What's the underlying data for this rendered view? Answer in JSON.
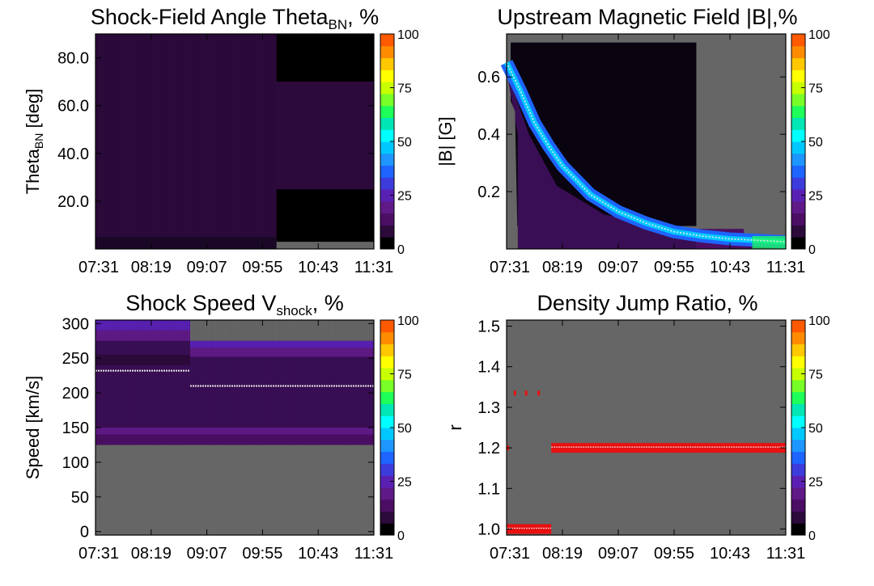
{
  "colorbar": {
    "min": 0,
    "max": 100,
    "ticks": [
      "0",
      "25",
      "50",
      "75",
      "100"
    ],
    "colors": [
      "#000000",
      "#2d0a3c",
      "#4b0e64",
      "#601a87",
      "#5a20b4",
      "#3c3cdc",
      "#1e64ff",
      "#1e96ff",
      "#00c8ff",
      "#00ffff",
      "#00e6b4",
      "#1eff5a",
      "#78ff28",
      "#c8ff00",
      "#ffff00",
      "#ffc800",
      "#ff8c00",
      "#ff5a00"
    ]
  },
  "time_ticks": [
    "07:31",
    "08:19",
    "09:07",
    "09:55",
    "10:43",
    "11:31"
  ],
  "chart_data": [
    {
      "type": "heatmap",
      "title_main": "Shock-Field Angle Theta",
      "title_sub": "BN",
      "title_tail": ", %",
      "ylabel_main": "Theta",
      "ylabel_sub": "BN",
      "ylabel_tail": " [deg]",
      "x_ticks": [
        "07:31",
        "08:19",
        "09:07",
        "09:55",
        "10:43",
        "11:31"
      ],
      "yticks": [
        "20.0",
        "40.0",
        "60.0",
        "80.0"
      ],
      "ytick_values": [
        20,
        40,
        60,
        80
      ],
      "ylim": [
        0,
        90
      ],
      "cb_ticks": [
        "0",
        "25",
        "50",
        "75",
        "100"
      ],
      "cb_range": [
        0,
        100
      ],
      "background": "#5c1a7a",
      "description_free": true,
      "regions": [
        {
          "x": [
            0,
            0.65
          ],
          "y": [
            0,
            90
          ],
          "value": 8
        },
        {
          "x": [
            0.65,
            1
          ],
          "y": [
            70,
            90
          ],
          "value": 3
        },
        {
          "x": [
            0.65,
            1
          ],
          "y": [
            25,
            70
          ],
          "value": 6
        },
        {
          "x": [
            0.65,
            1
          ],
          "y": [
            0,
            25
          ],
          "value": 4
        },
        {
          "x": [
            0.65,
            1
          ],
          "y": [
            0,
            3
          ],
          "value": -1
        }
      ]
    },
    {
      "type": "heatmap",
      "title_main": "Upstream Magnetic Field |B|,%",
      "ylabel_main": "|B| [G]",
      "x_ticks": [
        "07:31",
        "08:19",
        "09:07",
        "09:55",
        "10:43",
        "11:31"
      ],
      "yticks": [
        "0.2",
        "0.4",
        "0.6"
      ],
      "ytick_values": [
        0.2,
        0.4,
        0.6
      ],
      "ylim": [
        0.0,
        0.75
      ],
      "cb_ticks": [
        "0",
        "25",
        "50",
        "75",
        "100"
      ],
      "cb_range": [
        0,
        100
      ],
      "median_curve": {
        "x": [
          0.0,
          0.05,
          0.1,
          0.15,
          0.2,
          0.3,
          0.4,
          0.5,
          0.6,
          0.7,
          0.8,
          0.9,
          1.0
        ],
        "y": [
          0.65,
          0.55,
          0.44,
          0.36,
          0.29,
          0.19,
          0.13,
          0.09,
          0.06,
          0.045,
          0.035,
          0.03,
          0.025
        ]
      }
    },
    {
      "type": "heatmap",
      "title_main": "Shock Speed V",
      "title_sub": "shock",
      "title_tail": ", %",
      "ylabel_main": "Speed [km/s]",
      "x_ticks": [
        "07:31",
        "08:19",
        "09:07",
        "09:55",
        "10:43",
        "11:31"
      ],
      "yticks": [
        "0",
        "50",
        "100",
        "150",
        "200",
        "250",
        "300"
      ],
      "ytick_values": [
        0,
        50,
        100,
        150,
        200,
        250,
        300
      ],
      "ylim": [
        -5,
        305
      ],
      "cb_ticks": [
        "0",
        "25",
        "50",
        "75",
        "100"
      ],
      "cb_range": [
        0,
        100
      ],
      "median_segments": [
        {
          "x": [
            0,
            0.34
          ],
          "y": 232
        },
        {
          "x": [
            0.34,
            1
          ],
          "y": 210
        }
      ]
    },
    {
      "type": "heatmap",
      "title_main": "Density Jump Ratio, %",
      "ylabel_main": "r",
      "x_ticks": [
        "07:31",
        "08:19",
        "09:07",
        "09:55",
        "10:43",
        "11:31"
      ],
      "yticks": [
        "1.0",
        "1.1",
        "1.2",
        "1.3",
        "1.4",
        "1.5"
      ],
      "ytick_values": [
        1.0,
        1.1,
        1.2,
        1.3,
        1.4,
        1.5
      ],
      "ylim": [
        0.985,
        1.515
      ],
      "cb_ticks": [
        "0",
        "25",
        "50",
        "75",
        "100"
      ],
      "cb_range": [
        0,
        100
      ],
      "bands": [
        {
          "x": [
            0.0,
            0.16
          ],
          "y": 1.0
        },
        {
          "x": [
            0.16,
            1.0
          ],
          "y": 1.2
        }
      ],
      "dots": [
        {
          "x": 0.03,
          "y": 1.335
        },
        {
          "x": 0.07,
          "y": 1.335
        },
        {
          "x": 0.115,
          "y": 1.335
        },
        {
          "x": 0.005,
          "y": 1.2
        }
      ]
    }
  ]
}
